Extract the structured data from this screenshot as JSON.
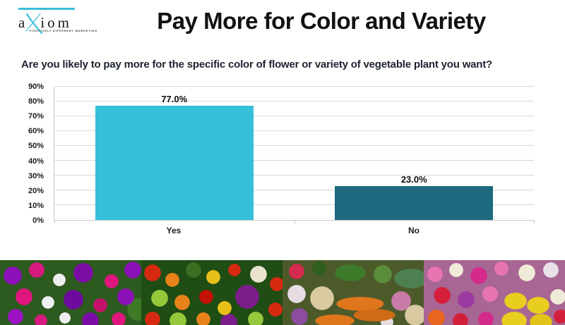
{
  "logo": {
    "text_a": "a",
    "text_x": "X",
    "text_rest": "iom",
    "tagline": "POSITIVELY DIFFERENT MARKETING",
    "accent_color": "#3bbdd9",
    "text_color": "#1a1a1a"
  },
  "header": {
    "title": "Pay More for Color and Variety"
  },
  "question": {
    "text": "Are you likely to pay more for the specific color of flower or variety of vegetable plant you want?"
  },
  "chart_data": {
    "type": "bar",
    "categories": [
      "Yes",
      "No"
    ],
    "values": [
      77.0,
      23.0
    ],
    "value_labels": [
      "77.0%",
      "23.0%"
    ],
    "bar_colors": [
      "#35bfd8",
      "#1d6a7e"
    ],
    "title": "",
    "xlabel": "",
    "ylabel": "",
    "ylim": [
      0,
      90
    ],
    "ytick_step": 10,
    "ytick_suffix": "%",
    "grid": true,
    "gridline_color": "#d9d9d9",
    "axis_color": "#c9c9c9",
    "legend": "none"
  },
  "photo_strip": {
    "photos": [
      {
        "name": "petunias-photo",
        "subject": "purple and magenta petunia flowers"
      },
      {
        "name": "vegetables-photo",
        "subject": "colorful mixed vegetables with red cabbage and peppers"
      },
      {
        "name": "root-vegetables-photo",
        "subject": "carrots, garlic, celeriac and root vegetables"
      },
      {
        "name": "tulips-photo",
        "subject": "pink, yellow and white tulips"
      }
    ]
  }
}
